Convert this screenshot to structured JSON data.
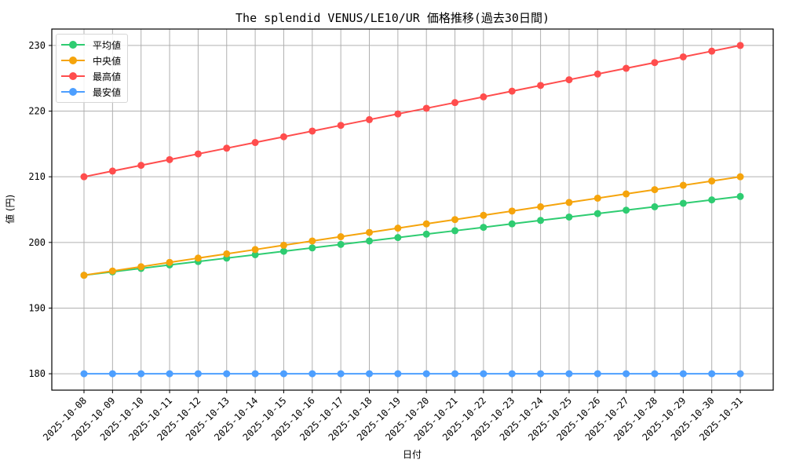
{
  "chart_data": {
    "type": "line",
    "title": "The splendid VENUS/LE10/UR 価格推移(過去30日間)",
    "xlabel": "日付",
    "ylabel": "値 (円)",
    "categories": [
      "2025-10-08",
      "2025-10-09",
      "2025-10-10",
      "2025-10-11",
      "2025-10-12",
      "2025-10-13",
      "2025-10-14",
      "2025-10-15",
      "2025-10-16",
      "2025-10-17",
      "2025-10-18",
      "2025-10-19",
      "2025-10-20",
      "2025-10-21",
      "2025-10-22",
      "2025-10-23",
      "2025-10-24",
      "2025-10-25",
      "2025-10-26",
      "2025-10-27",
      "2025-10-28",
      "2025-10-29",
      "2025-10-30",
      "2025-10-31"
    ],
    "series": [
      {
        "name": "平均値",
        "color": "#2ecc71",
        "values": [
          195.0,
          195.52,
          196.04,
          196.57,
          197.09,
          197.61,
          198.13,
          198.65,
          199.17,
          199.7,
          200.22,
          200.74,
          201.26,
          201.78,
          202.3,
          202.83,
          203.35,
          203.87,
          204.39,
          204.91,
          205.43,
          205.96,
          206.48,
          207.0
        ]
      },
      {
        "name": "中央値",
        "color": "#f5a40c",
        "values": [
          195.0,
          195.65,
          196.3,
          196.96,
          197.61,
          198.26,
          198.91,
          199.57,
          200.22,
          200.87,
          201.52,
          202.17,
          202.83,
          203.48,
          204.13,
          204.78,
          205.43,
          206.09,
          206.74,
          207.39,
          208.04,
          208.7,
          209.35,
          210.0
        ]
      },
      {
        "name": "最高値",
        "color": "#ff4d4d",
        "values": [
          210.0,
          210.87,
          211.74,
          212.61,
          213.48,
          214.35,
          215.22,
          216.09,
          216.96,
          217.83,
          218.7,
          219.57,
          220.43,
          221.3,
          222.17,
          223.04,
          223.91,
          224.78,
          225.65,
          226.52,
          227.39,
          228.26,
          229.13,
          230.0
        ]
      },
      {
        "name": "最安値",
        "color": "#4d9fff",
        "values": [
          180,
          180,
          180,
          180,
          180,
          180,
          180,
          180,
          180,
          180,
          180,
          180,
          180,
          180,
          180,
          180,
          180,
          180,
          180,
          180,
          180,
          180,
          180,
          180
        ]
      }
    ],
    "yticks": [
      180,
      190,
      200,
      210,
      220,
      230
    ],
    "ylim": [
      177.5,
      232.5
    ],
    "grid": true,
    "legend_position": "upper left",
    "markers": true
  }
}
